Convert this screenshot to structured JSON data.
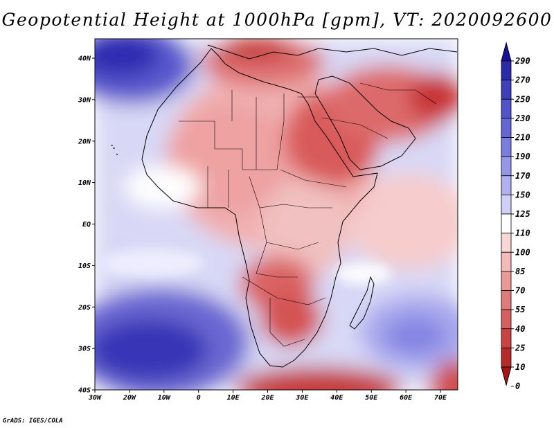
{
  "title": "Geopotential Height at 1000hPa [gpm], VT: 2020092600",
  "credit": "GrADS: IGES/COLA",
  "map": {
    "lon_labels": [
      "30W",
      "20W",
      "10W",
      "0",
      "10E",
      "20E",
      "30E",
      "40E",
      "50E",
      "60E",
      "70E"
    ],
    "lat_labels": [
      "40N",
      "30N",
      "20N",
      "10N",
      "EQ",
      "10S",
      "20S",
      "30S",
      "40S"
    ]
  },
  "colorbar": {
    "levels": [
      "290",
      "270",
      "250",
      "230",
      "210",
      "190",
      "170",
      "150",
      "125",
      "110",
      "100",
      "85",
      "70",
      "55",
      "40",
      "25",
      "10",
      "0"
    ],
    "colors": [
      "#1a1196",
      "#2b2aa8",
      "#3f3fbb",
      "#5252c9",
      "#6565d6",
      "#7b7be0",
      "#9696e9",
      "#b1b1f0",
      "#d0d0f6",
      "#ffffff",
      "#f9d7d7",
      "#f4b9b9",
      "#ea9898",
      "#e07b7b",
      "#d55f5f",
      "#c94343",
      "#b82a2a",
      "#a51515"
    ]
  }
}
